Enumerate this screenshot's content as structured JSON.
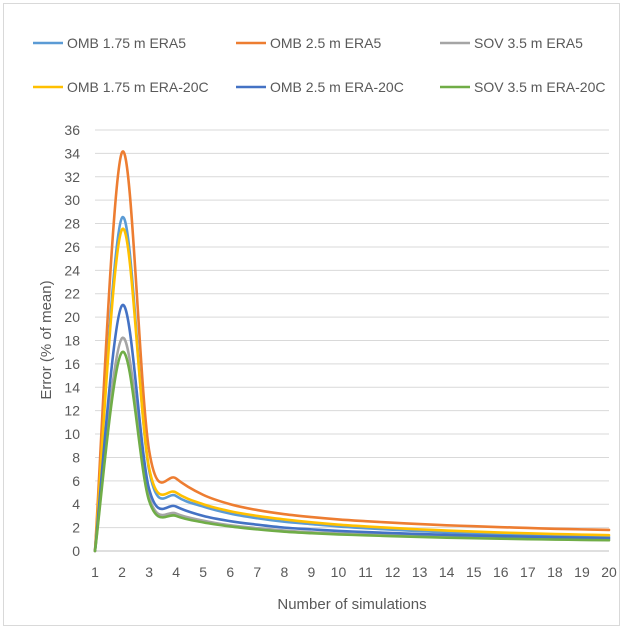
{
  "chart_data": {
    "type": "line",
    "title": "",
    "xlabel": "Number of simulations",
    "ylabel": "Error (% of mean)",
    "xlim": [
      1,
      20
    ],
    "ylim": [
      0,
      36
    ],
    "xticks": [
      1,
      2,
      3,
      4,
      5,
      6,
      7,
      8,
      9,
      10,
      11,
      12,
      13,
      14,
      15,
      16,
      17,
      18,
      19,
      20
    ],
    "yticks": [
      0,
      2,
      4,
      6,
      8,
      10,
      12,
      14,
      16,
      18,
      20,
      22,
      24,
      26,
      28,
      30,
      32,
      34,
      36
    ],
    "grid": "horizontal",
    "legend_position": "top",
    "x": [
      1,
      2,
      3,
      4,
      5,
      6,
      7,
      8,
      9,
      10,
      11,
      12,
      13,
      14,
      15,
      16,
      17,
      18,
      19,
      20
    ],
    "series": [
      {
        "name": "OMB 1.75 m ERA5",
        "color": "#5b9bd5",
        "values": [
          0,
          28.5,
          6.9,
          4.7,
          3.8,
          3.2,
          2.8,
          2.5,
          2.3,
          2.1,
          1.95,
          1.82,
          1.7,
          1.6,
          1.5,
          1.42,
          1.35,
          1.3,
          1.25,
          1.2
        ]
      },
      {
        "name": "OMB 2.5 m ERA5",
        "color": "#ed7d31",
        "values": [
          0,
          34.1,
          8.6,
          6.2,
          4.8,
          4.0,
          3.5,
          3.15,
          2.9,
          2.7,
          2.55,
          2.42,
          2.3,
          2.2,
          2.12,
          2.04,
          1.97,
          1.9,
          1.85,
          1.8
        ]
      },
      {
        "name": "SOV 3.5 m ERA5",
        "color": "#a5a5a5",
        "values": [
          0,
          18.2,
          4.6,
          3.2,
          2.6,
          2.2,
          1.95,
          1.75,
          1.6,
          1.5,
          1.42,
          1.35,
          1.28,
          1.22,
          1.17,
          1.13,
          1.09,
          1.06,
          1.03,
          1.0
        ]
      },
      {
        "name": "OMB 1.75 m ERA-20C",
        "color": "#ffc000",
        "values": [
          0,
          27.5,
          7.1,
          5.0,
          4.0,
          3.4,
          3.0,
          2.7,
          2.45,
          2.25,
          2.1,
          1.97,
          1.85,
          1.75,
          1.66,
          1.58,
          1.51,
          1.45,
          1.4,
          1.35
        ]
      },
      {
        "name": "OMB 2.5 m ERA-20C",
        "color": "#4472c4",
        "values": [
          0,
          21.0,
          5.3,
          3.8,
          3.0,
          2.55,
          2.25,
          2.0,
          1.85,
          1.72,
          1.62,
          1.53,
          1.45,
          1.38,
          1.32,
          1.27,
          1.22,
          1.18,
          1.14,
          1.1
        ]
      },
      {
        "name": "SOV 3.5 m ERA-20C",
        "color": "#70ad47",
        "values": [
          0,
          17.0,
          4.3,
          3.0,
          2.45,
          2.1,
          1.85,
          1.65,
          1.52,
          1.42,
          1.34,
          1.27,
          1.2,
          1.14,
          1.09,
          1.05,
          1.01,
          0.98,
          0.95,
          0.92
        ]
      }
    ]
  }
}
